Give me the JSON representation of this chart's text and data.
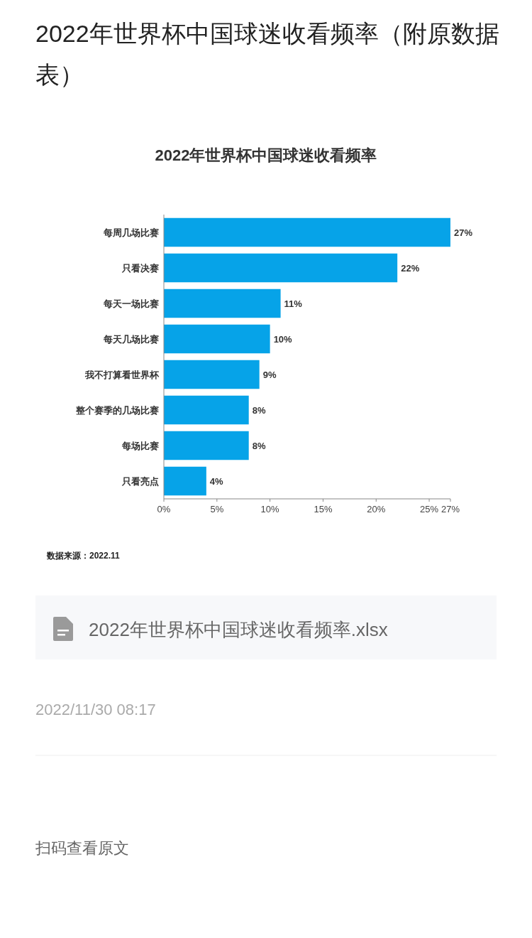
{
  "chart_data": {
    "type": "bar",
    "orientation": "horizontal",
    "title": "2022年世界杯中国球迷收看频率（附原数据表）",
    "subtitle": "2022年世界杯中国球迷收看频率",
    "categories": [
      "每周几场比赛",
      "只看决赛",
      "每天一场比赛",
      "每天几场比赛",
      "我不打算看世界杯",
      "整个赛季的几场比赛",
      "每场比赛",
      "只看亮点"
    ],
    "values": [
      27,
      22,
      11,
      10,
      9,
      8,
      8,
      4
    ],
    "value_labels": [
      "27%",
      "22%",
      "11%",
      "10%",
      "9%",
      "8%",
      "8%",
      "4%"
    ],
    "color": "#06a3e8",
    "xlim": [
      0,
      27
    ],
    "xticks": [
      {
        "value": 0,
        "label": "0%"
      },
      {
        "value": 5,
        "label": "5%"
      },
      {
        "value": 10,
        "label": "10%"
      },
      {
        "value": 15,
        "label": "15%"
      },
      {
        "value": 20,
        "label": "20%"
      },
      {
        "value": 25,
        "label": "25%"
      },
      {
        "value": 27,
        "label": "27%"
      }
    ],
    "annotations": [
      "数据来源：2022.11",
      "2022年世界杯中国球迷收看频率.xlsx",
      "2022/11/30 08:17",
      "扫码查看原文"
    ]
  }
}
